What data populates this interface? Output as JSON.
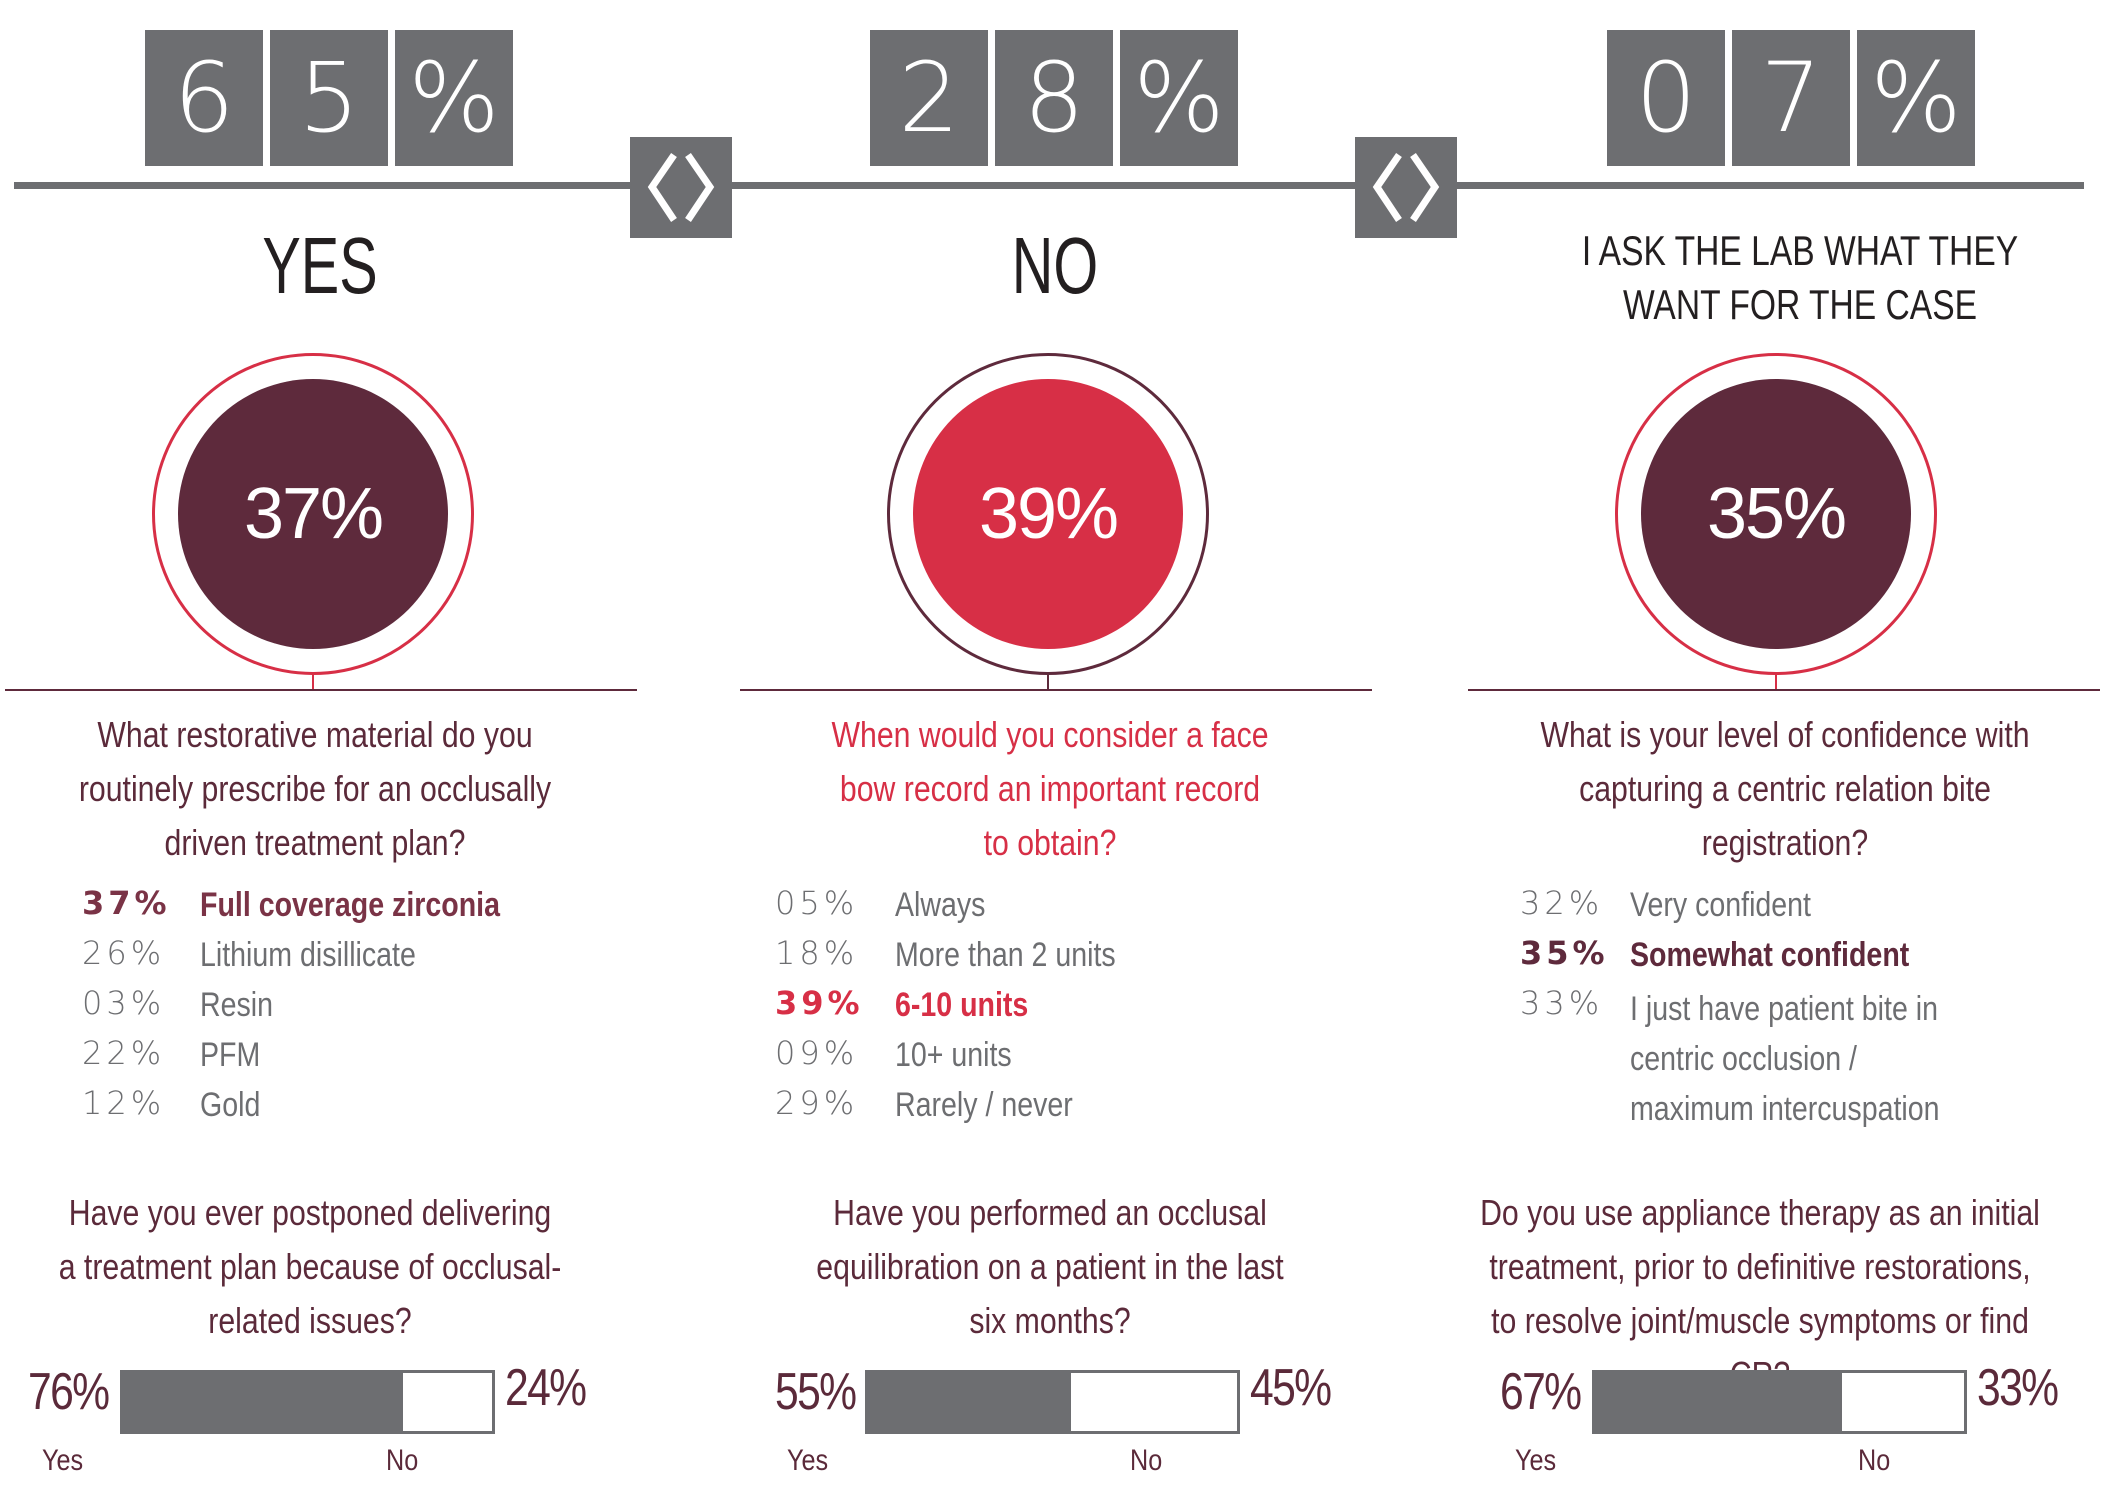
{
  "colors": {
    "gray": "#6d6e71",
    "maroon": "#5e2a3c",
    "red": "#d72f46",
    "text_dark": "#231f20",
    "text_maroon": "#5b2a3a"
  },
  "separator_icon": "chevron-pair-icon",
  "chart_data": [
    {
      "type": "bar",
      "title": "",
      "columns": [
        {
          "digits": [
            "6",
            "5",
            "%"
          ],
          "value": 65,
          "answer": "YES"
        },
        {
          "digits": [
            "2",
            "8",
            "%"
          ],
          "value": 28,
          "answer": "NO"
        },
        {
          "digits": [
            "0",
            "7",
            "%"
          ],
          "value": 7,
          "answer": "I ASK THE LAB WHAT THEY WANT FOR THE CASE"
        }
      ]
    },
    {
      "type": "pie",
      "highlight": "37%",
      "question": "What restorative material do you routinely prescribe for an occlusally driven treatment plan?",
      "options": [
        {
          "pct": "37%",
          "label": "Full coverage zirconia",
          "value": 37,
          "highlight": true
        },
        {
          "pct": "26%",
          "label": "Lithium disillicate",
          "value": 26,
          "highlight": false
        },
        {
          "pct": "03%",
          "label": "Resin",
          "value": 3,
          "highlight": false
        },
        {
          "pct": "22%",
          "label": "PFM",
          "value": 22,
          "highlight": false
        },
        {
          "pct": "12%",
          "label": "Gold",
          "value": 12,
          "highlight": false
        }
      ]
    },
    {
      "type": "pie",
      "highlight": "39%",
      "question": "When would you consider a face bow record an important record to obtain?",
      "options": [
        {
          "pct": "05%",
          "label": "Always",
          "value": 5,
          "highlight": false
        },
        {
          "pct": "18%",
          "label": "More than 2 units",
          "value": 18,
          "highlight": false
        },
        {
          "pct": "39%",
          "label": "6-10 units",
          "value": 39,
          "highlight": true
        },
        {
          "pct": "09%",
          "label": "10+ units",
          "value": 9,
          "highlight": false
        },
        {
          "pct": "29%",
          "label": "Rarely / never",
          "value": 29,
          "highlight": false
        }
      ]
    },
    {
      "type": "pie",
      "highlight": "35%",
      "question": "What is your level of confidence with capturing a centric relation bite registration?",
      "options": [
        {
          "pct": "32%",
          "label": "Very confident",
          "value": 32,
          "highlight": false
        },
        {
          "pct": "35%",
          "label": "Somewhat confident",
          "value": 35,
          "highlight": true
        },
        {
          "pct": "33%",
          "label": "I just have patient bite in centric occlusion / maximum intercuspation",
          "value": 33,
          "highlight": false
        }
      ]
    },
    {
      "type": "bar",
      "question": "Have you ever postponed delivering a treatment plan because of occlusal-related issues?",
      "yes_pct": "76%",
      "no_pct": "24%",
      "yes_value": 76,
      "yes_label": "Yes",
      "no_label": "No"
    },
    {
      "type": "bar",
      "question": "Have you performed an occlusal equilibration on a patient in the last six months?",
      "yes_pct": "55%",
      "no_pct": "45%",
      "yes_value": 55,
      "yes_label": "Yes",
      "no_label": "No"
    },
    {
      "type": "bar",
      "question": "Do you use appliance therapy as an initial treatment, prior to definitive restorations, to resolve joint/muscle symptoms or find CR?",
      "yes_pct": "67%",
      "no_pct": "33%",
      "yes_value": 67,
      "yes_label": "Yes",
      "no_label": "No"
    }
  ]
}
